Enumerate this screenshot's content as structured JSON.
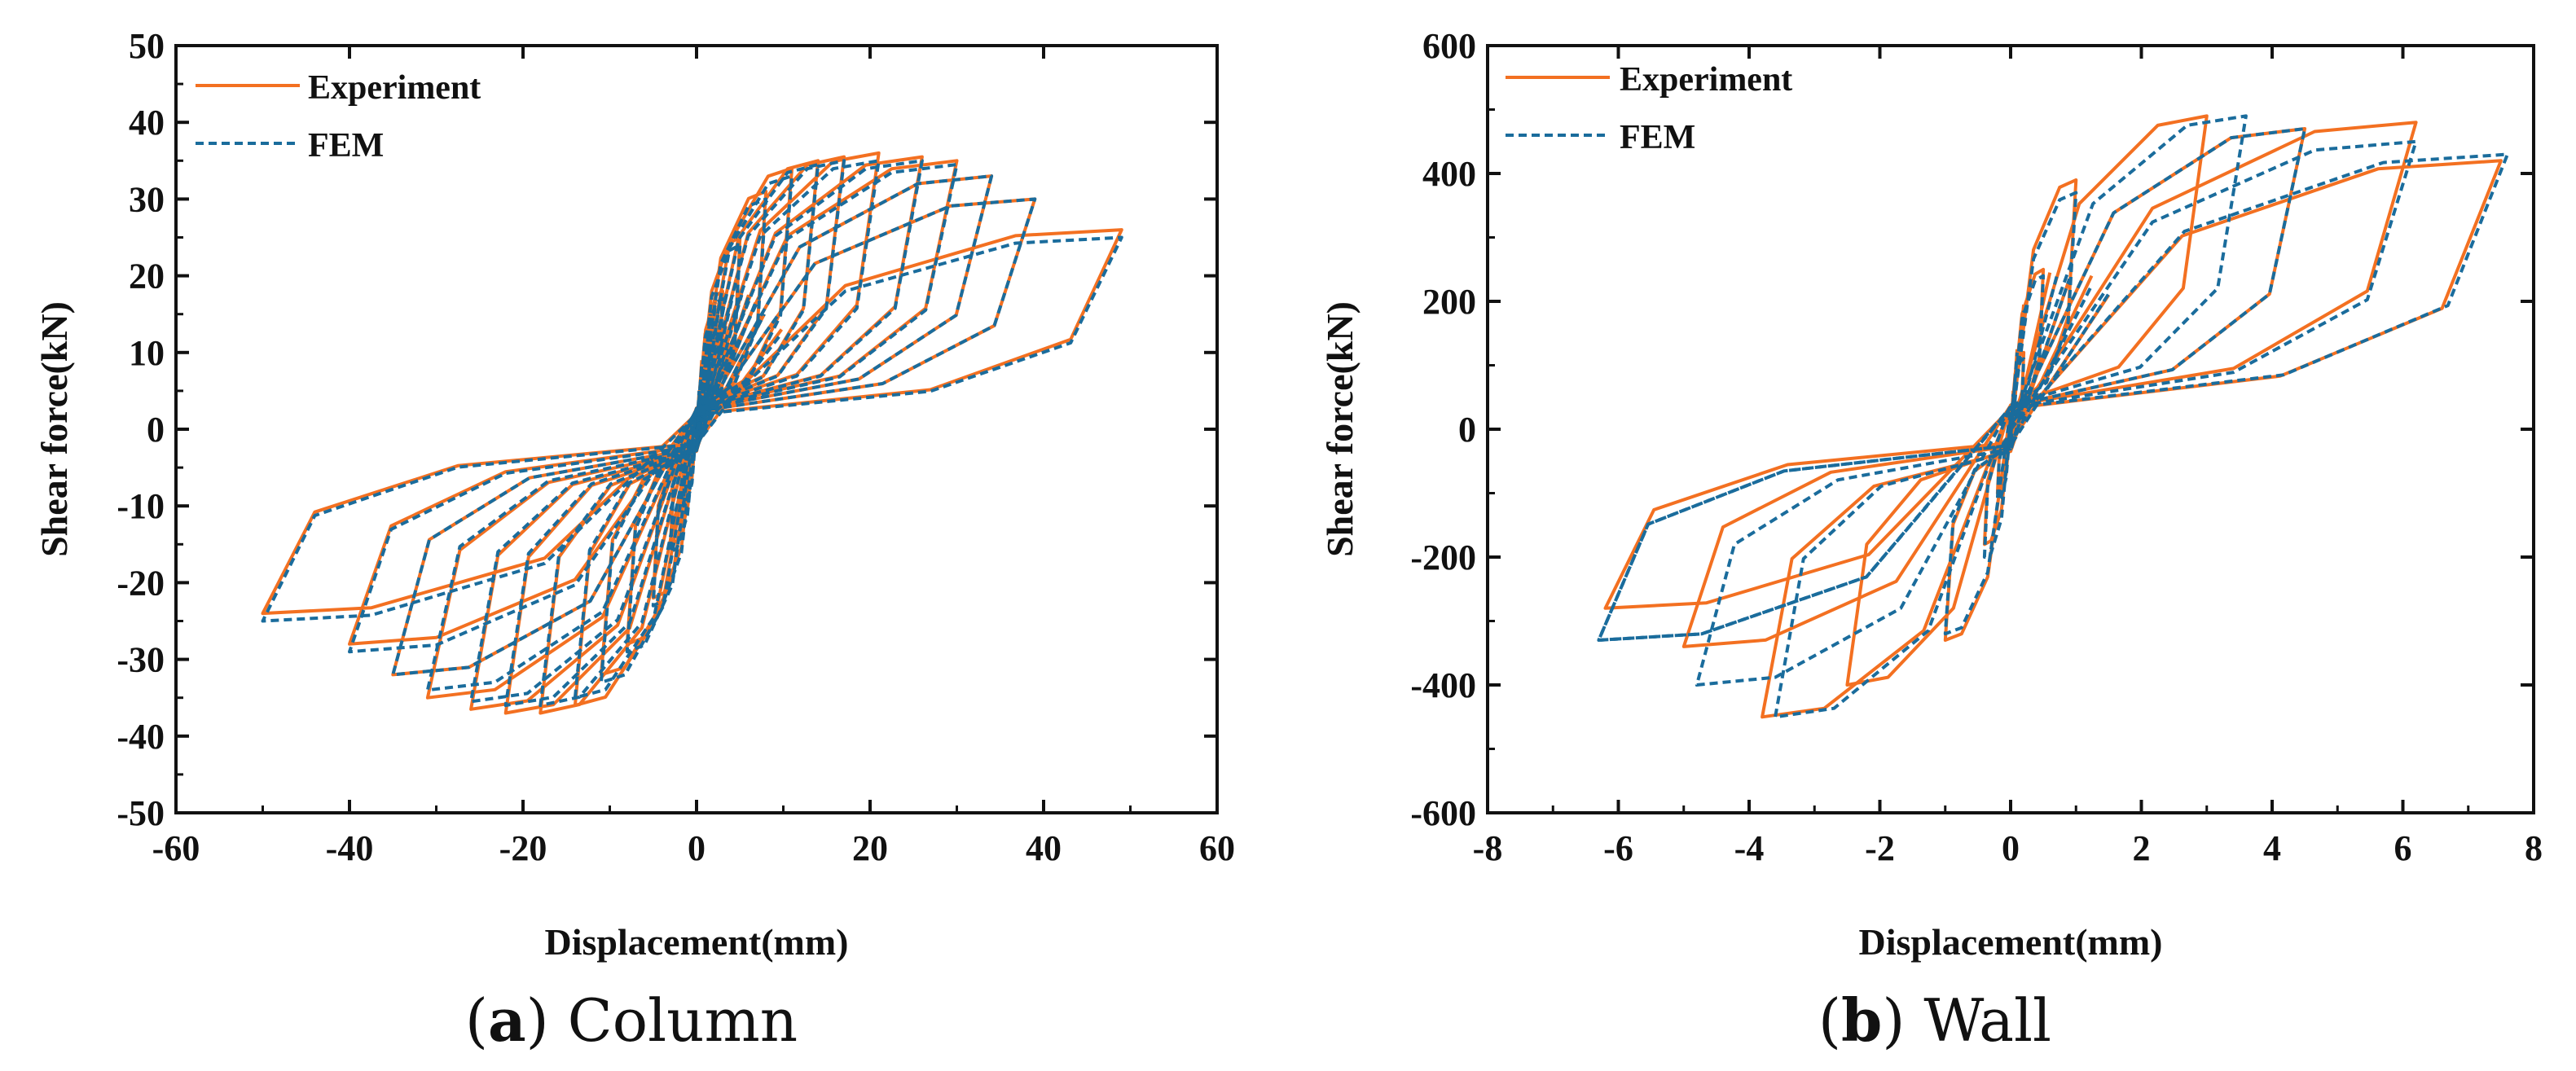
{
  "colors": {
    "experiment": "#F37021",
    "fem": "#1A6C9C",
    "axis": "#111111"
  },
  "chart_data": [
    {
      "type": "line",
      "panel": "a",
      "caption_letter": "a",
      "caption_text": "Column",
      "xlabel": "Displacement(mm)",
      "ylabel": "Shear force(kN)",
      "xlim": [
        -60,
        60
      ],
      "ylim": [
        -50,
        50
      ],
      "xticks": [
        -60,
        -40,
        -20,
        0,
        20,
        40,
        60
      ],
      "yticks": [
        -50,
        -40,
        -30,
        -20,
        -10,
        0,
        10,
        20,
        30,
        40,
        50
      ],
      "legend_position": "top-left",
      "series": [
        {
          "name": "Experiment",
          "style": "solid",
          "loops": [
            {
              "dmax": 1.5,
              "fmax": 10,
              "dmin": -1.5,
              "fmin": -9
            },
            {
              "dmax": 3,
              "fmax": 18,
              "dmin": -3,
              "fmin": -15
            },
            {
              "dmax": 5,
              "fmax": 25,
              "dmin": -5,
              "fmin": -22
            },
            {
              "dmax": 8,
              "fmax": 31,
              "dmin": -8,
              "fmin": -28
            },
            {
              "dmax": 11,
              "fmax": 34,
              "dmin": -11,
              "fmin": -32
            },
            {
              "dmax": 14,
              "fmax": 35,
              "dmin": -14,
              "fmin": -36
            },
            {
              "dmax": 17,
              "fmax": 35.5,
              "dmin": -18,
              "fmin": -37
            },
            {
              "dmax": 21,
              "fmax": 36,
              "dmin": -22,
              "fmin": -37
            },
            {
              "dmax": 26,
              "fmax": 35.5,
              "dmin": -26,
              "fmin": -36.5
            },
            {
              "dmax": 30,
              "fmax": 35,
              "dmin": -31,
              "fmin": -35
            },
            {
              "dmax": 34,
              "fmax": 33,
              "dmin": -35,
              "fmin": -32
            },
            {
              "dmax": 39,
              "fmax": 30,
              "dmin": -40,
              "fmin": -28
            },
            {
              "dmax": 49,
              "fmax": 26,
              "dmin": -50,
              "fmin": -24
            }
          ]
        },
        {
          "name": "FEM",
          "style": "dashed",
          "loops": [
            {
              "dmax": 1.5,
              "fmax": 10,
              "dmin": -1.5,
              "fmin": -10
            },
            {
              "dmax": 3,
              "fmax": 17,
              "dmin": -3,
              "fmin": -16
            },
            {
              "dmax": 5,
              "fmax": 24,
              "dmin": -5,
              "fmin": -23
            },
            {
              "dmax": 8,
              "fmax": 30,
              "dmin": -8,
              "fmin": -29
            },
            {
              "dmax": 11,
              "fmax": 33,
              "dmin": -11,
              "fmin": -33
            },
            {
              "dmax": 14,
              "fmax": 34.5,
              "dmin": -14,
              "fmin": -35
            },
            {
              "dmax": 17,
              "fmax": 35,
              "dmin": -18,
              "fmin": -36
            },
            {
              "dmax": 21,
              "fmax": 35,
              "dmin": -22,
              "fmin": -36
            },
            {
              "dmax": 26,
              "fmax": 35,
              "dmin": -26,
              "fmin": -35.5
            },
            {
              "dmax": 30,
              "fmax": 34.5,
              "dmin": -31,
              "fmin": -34
            },
            {
              "dmax": 34,
              "fmax": 33,
              "dmin": -35,
              "fmin": -32
            },
            {
              "dmax": 39,
              "fmax": 30,
              "dmin": -40,
              "fmin": -29
            },
            {
              "dmax": 49,
              "fmax": 25,
              "dmin": -50,
              "fmin": -25
            }
          ]
        }
      ]
    },
    {
      "type": "line",
      "panel": "b",
      "caption_letter": "b",
      "caption_text": "Wall",
      "xlabel": "Displacement(mm)",
      "ylabel": "Shear force(kN)",
      "xlim": [
        -8,
        8
      ],
      "ylim": [
        -600,
        600
      ],
      "xticks": [
        -8,
        -6,
        -4,
        -2,
        0,
        2,
        4,
        6,
        8
      ],
      "yticks": [
        -600,
        -400,
        -200,
        0,
        200,
        400,
        600
      ],
      "legend_position": "top-left",
      "series": [
        {
          "name": "Experiment",
          "style": "solid",
          "loops": [
            {
              "dmax": 0.2,
              "fmax": 120,
              "dmin": -0.2,
              "fmin": -100
            },
            {
              "dmax": 0.5,
              "fmax": 250,
              "dmin": -0.4,
              "fmin": -180
            },
            {
              "dmax": 1.0,
              "fmax": 390,
              "dmin": -1.0,
              "fmin": -330
            },
            {
              "dmax": 3.0,
              "fmax": 490,
              "dmin": -2.5,
              "fmin": -400
            },
            {
              "dmax": 4.5,
              "fmax": 470,
              "dmin": -3.8,
              "fmin": -450
            },
            {
              "dmax": 6.2,
              "fmax": 480,
              "dmin": -5.0,
              "fmin": -340
            },
            {
              "dmax": 7.5,
              "fmax": 420,
              "dmin": -6.2,
              "fmin": -280
            }
          ]
        },
        {
          "name": "FEM",
          "style": "dashed",
          "loops": [
            {
              "dmax": 0.2,
              "fmax": 110,
              "dmin": -0.2,
              "fmin": -110
            },
            {
              "dmax": 0.5,
              "fmax": 240,
              "dmin": -0.4,
              "fmin": -200
            },
            {
              "dmax": 1.0,
              "fmax": 370,
              "dmin": -1.0,
              "fmin": -320
            },
            {
              "dmax": 3.6,
              "fmax": 490,
              "dmin": -3.6,
              "fmin": -450
            },
            {
              "dmax": 4.5,
              "fmax": 470,
              "dmin": -4.8,
              "fmin": -400
            },
            {
              "dmax": 6.2,
              "fmax": 450,
              "dmin": -6.3,
              "fmin": -330
            },
            {
              "dmax": 7.6,
              "fmax": 430,
              "dmin": -6.3,
              "fmin": -330
            }
          ]
        }
      ]
    }
  ]
}
